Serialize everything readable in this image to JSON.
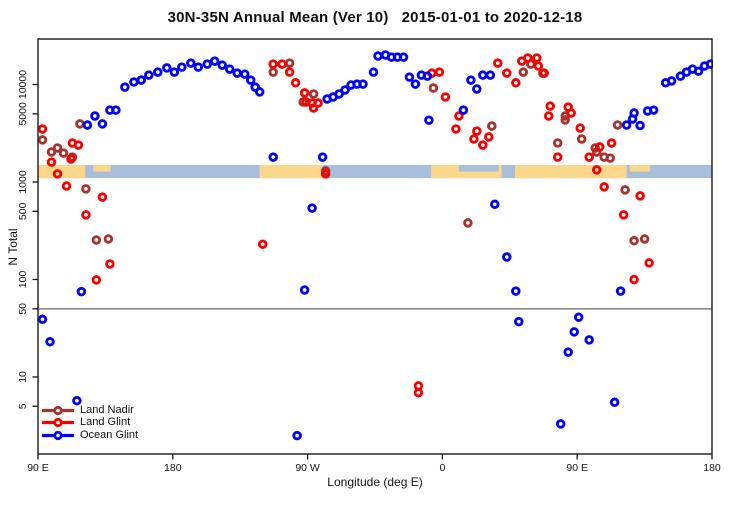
{
  "chart_data": {
    "type": "scatter",
    "title": "30N-35N Annual Mean (Ver 10)   2015-01-01 to 2020-12-18",
    "xlabel": "Longitude (deg E)",
    "ylabel": "N Total",
    "x_axis": {
      "lim": [
        90,
        540
      ],
      "ticks": [
        {
          "v": 90,
          "label": "90 E"
        },
        {
          "v": 180,
          "label": "180"
        },
        {
          "v": 270,
          "label": "90 W"
        },
        {
          "v": 360,
          "label": "0"
        },
        {
          "v": 450,
          "label": "90 E"
        },
        {
          "v": 540,
          "label": "180"
        }
      ]
    },
    "y_axis": {
      "scale": "log",
      "lim": [
        1.62,
        29300
      ],
      "ticks": [
        {
          "v": 5,
          "label": "5"
        },
        {
          "v": 10,
          "label": "10"
        },
        {
          "v": 50,
          "label": "50"
        },
        {
          "v": 100,
          "label": "100"
        },
        {
          "v": 500,
          "label": "500"
        },
        {
          "v": 1000,
          "label": "1000"
        },
        {
          "v": 5000,
          "label": "5000"
        },
        {
          "v": 10000,
          "label": "10000"
        }
      ]
    },
    "reference_line": {
      "value": 50,
      "color": "#8a8a8a"
    },
    "map_band": {
      "n_min": 1095,
      "n_max": 1495,
      "ocean_color": "#a9bedb",
      "land_color": "#fbd78b",
      "land_segments": [
        {
          "from": 90,
          "to": 121.5,
          "part": "full"
        },
        {
          "from": 127,
          "to": 138.5,
          "part": "top"
        },
        {
          "from": 238,
          "to": 280.5,
          "part": "full"
        },
        {
          "from": 352.5,
          "to": 399.5,
          "part": "full"
        },
        {
          "from": 408.5,
          "to": 483,
          "part": "full"
        },
        {
          "from": 485,
          "to": 498.5,
          "part": "top"
        }
      ],
      "ocean_notches": [
        {
          "from": 371,
          "to": 397.5,
          "part": "top"
        }
      ]
    },
    "series": [
      {
        "name": "Land Nadir",
        "key": "land-nadir",
        "color": "#A5332E",
        "points": [
          [
            93,
            2700
          ],
          [
            99,
            2030
          ],
          [
            103,
            2230
          ],
          [
            107,
            1980
          ],
          [
            113,
            1800
          ],
          [
            118,
            3940
          ],
          [
            122,
            850
          ],
          [
            129,
            254
          ],
          [
            137,
            260
          ],
          [
            247,
            13400
          ],
          [
            258,
            16600
          ],
          [
            267,
            6620
          ],
          [
            274,
            8000
          ],
          [
            282,
            1300
          ],
          [
            354,
            9200
          ],
          [
            377,
            380
          ],
          [
            393,
            3750
          ],
          [
            414,
            13400
          ],
          [
            419,
            16200
          ],
          [
            427,
            13100
          ],
          [
            437,
            2510
          ],
          [
            442,
            4750
          ],
          [
            442,
            4330
          ],
          [
            453,
            2760
          ],
          [
            462,
            2230
          ],
          [
            463,
            2030
          ],
          [
            468,
            1800
          ],
          [
            472,
            1760
          ],
          [
            477,
            3840
          ],
          [
            482,
            830
          ],
          [
            488,
            250
          ],
          [
            495,
            260
          ]
        ]
      },
      {
        "name": "Land Glint",
        "key": "land-glint",
        "color": "#F60000",
        "points": [
          [
            93,
            3500
          ],
          [
            99,
            1600
          ],
          [
            113,
            2510
          ],
          [
            117,
            2390
          ],
          [
            112,
            1720
          ],
          [
            103,
            1210
          ],
          [
            109,
            910
          ],
          [
            133,
            700
          ],
          [
            122,
            460
          ],
          [
            138,
            144
          ],
          [
            129,
            99
          ],
          [
            247,
            16200
          ],
          [
            253,
            16200
          ],
          [
            258,
            13400
          ],
          [
            262,
            10400
          ],
          [
            268,
            8200
          ],
          [
            269,
            6620
          ],
          [
            273,
            6460
          ],
          [
            277,
            6460
          ],
          [
            274,
            5740
          ],
          [
            282,
            1210
          ],
          [
            240,
            230
          ],
          [
            358,
            13400
          ],
          [
            353,
            13100
          ],
          [
            362,
            7450
          ],
          [
            371,
            4750
          ],
          [
            369,
            3500
          ],
          [
            383,
            3330
          ],
          [
            381,
            2760
          ],
          [
            387,
            2390
          ],
          [
            391,
            2900
          ],
          [
            397,
            16600
          ],
          [
            403,
            13100
          ],
          [
            413,
            17400
          ],
          [
            417,
            18700
          ],
          [
            423,
            18700
          ],
          [
            424,
            15500
          ],
          [
            428,
            13100
          ],
          [
            409,
            10400
          ],
          [
            432,
            6000
          ],
          [
            431,
            4750
          ],
          [
            444,
            5870
          ],
          [
            446,
            5100
          ],
          [
            452,
            3580
          ],
          [
            437,
            1800
          ],
          [
            458,
            1800
          ],
          [
            463,
            1330
          ],
          [
            465,
            2290
          ],
          [
            473,
            2510
          ],
          [
            468,
            890
          ],
          [
            492,
            720
          ],
          [
            481,
            460
          ],
          [
            498,
            148
          ],
          [
            488,
            100
          ],
          [
            344,
            8.1
          ],
          [
            344,
            6.9
          ]
        ]
      },
      {
        "name": "Ocean Glint",
        "key": "ocean-glint",
        "color": "#0202F2",
        "points": [
          [
            148,
            9400
          ],
          [
            154,
            10600
          ],
          [
            159,
            11100
          ],
          [
            164,
            12500
          ],
          [
            170,
            13400
          ],
          [
            176,
            14800
          ],
          [
            181,
            13400
          ],
          [
            186,
            15100
          ],
          [
            192,
            16600
          ],
          [
            197,
            15100
          ],
          [
            203,
            16200
          ],
          [
            208,
            17400
          ],
          [
            213,
            15800
          ],
          [
            218,
            14400
          ],
          [
            223,
            13100
          ],
          [
            228,
            12800
          ],
          [
            232,
            11100
          ],
          [
            235,
            9400
          ],
          [
            238,
            8400
          ],
          [
            123,
            3840
          ],
          [
            128,
            4750
          ],
          [
            133,
            3940
          ],
          [
            138,
            5470
          ],
          [
            142,
            5470
          ],
          [
            119,
            75
          ],
          [
            93,
            39
          ],
          [
            98,
            23
          ],
          [
            116,
            5.7
          ],
          [
            247,
            1800
          ],
          [
            280,
            1800
          ],
          [
            273,
            540
          ],
          [
            268,
            78
          ],
          [
            263,
            2.5
          ],
          [
            283,
            7100
          ],
          [
            287,
            7450
          ],
          [
            291,
            8000
          ],
          [
            295,
            8790
          ],
          [
            299,
            9890
          ],
          [
            303,
            10100
          ],
          [
            307,
            10100
          ],
          [
            314,
            13400
          ],
          [
            317,
            19600
          ],
          [
            322,
            20100
          ],
          [
            326,
            19100
          ],
          [
            330,
            19100
          ],
          [
            334,
            19100
          ],
          [
            338,
            11900
          ],
          [
            342,
            10100
          ],
          [
            346,
            12500
          ],
          [
            350,
            12200
          ],
          [
            351,
            4300
          ],
          [
            374,
            5470
          ],
          [
            379,
            11100
          ],
          [
            383,
            9000
          ],
          [
            387,
            12500
          ],
          [
            392,
            12500
          ],
          [
            395,
            590
          ],
          [
            403,
            170
          ],
          [
            409,
            76
          ],
          [
            411,
            37
          ],
          [
            444,
            18
          ],
          [
            448,
            29
          ],
          [
            451,
            41
          ],
          [
            458,
            24
          ],
          [
            439,
            3.3
          ],
          [
            475,
            5.5
          ],
          [
            479,
            76
          ],
          [
            483,
            3840
          ],
          [
            487,
            4430
          ],
          [
            488,
            5100
          ],
          [
            492,
            3800
          ],
          [
            497,
            5350
          ],
          [
            501,
            5470
          ],
          [
            509,
            10400
          ],
          [
            513,
            10900
          ],
          [
            519,
            12200
          ],
          [
            523,
            13400
          ],
          [
            527,
            14400
          ],
          [
            531,
            13700
          ],
          [
            535,
            15500
          ],
          [
            539,
            16200
          ]
        ]
      }
    ]
  },
  "legend": {
    "items": [
      {
        "label": "Land Nadir"
      },
      {
        "label": "Land Glint"
      },
      {
        "label": "Ocean Glint"
      }
    ]
  }
}
